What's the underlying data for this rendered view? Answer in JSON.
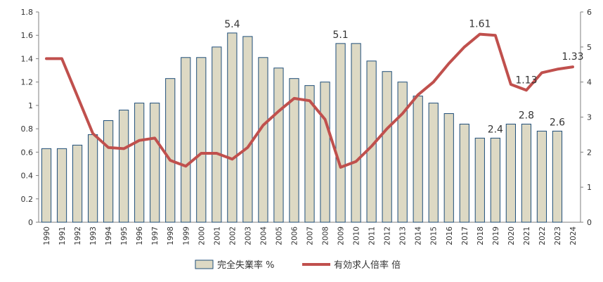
{
  "chart_data": {
    "type": "bar+line",
    "categories": [
      "1990",
      "1991",
      "1992",
      "1993",
      "1994",
      "1995",
      "1996",
      "1997",
      "1998",
      "1999",
      "2000",
      "2001",
      "2002",
      "2003",
      "2004",
      "2005",
      "2006",
      "2007",
      "2008",
      "2009",
      "2010",
      "2011",
      "2012",
      "2013",
      "2014",
      "2015",
      "2016",
      "2017",
      "2018",
      "2019",
      "2020",
      "2021",
      "2022",
      "2023",
      "2024"
    ],
    "series": [
      {
        "name": "完全失業率 %",
        "type": "bar",
        "axis": "right",
        "color": "#ddd9c4",
        "edge_color": "#1f4e79",
        "values": [
          2.1,
          2.1,
          2.2,
          2.5,
          2.9,
          3.2,
          3.4,
          3.4,
          4.1,
          4.7,
          4.7,
          5.0,
          5.4,
          5.3,
          4.7,
          4.4,
          4.1,
          3.9,
          4.0,
          5.1,
          5.1,
          4.6,
          4.3,
          4.0,
          3.6,
          3.4,
          3.1,
          2.8,
          2.4,
          2.4,
          2.8,
          2.8,
          2.6,
          2.6,
          null
        ]
      },
      {
        "name": "有効求人倍率 倍",
        "type": "line",
        "axis": "left",
        "color": "#c0504d",
        "values": [
          1.4,
          1.4,
          1.08,
          0.76,
          0.64,
          0.63,
          0.7,
          0.72,
          0.53,
          0.48,
          0.59,
          0.59,
          0.54,
          0.64,
          0.83,
          0.95,
          1.06,
          1.04,
          0.88,
          0.47,
          0.52,
          0.65,
          0.8,
          0.93,
          1.09,
          1.2,
          1.36,
          1.5,
          1.61,
          1.6,
          1.18,
          1.13,
          1.28,
          1.31,
          1.33
        ]
      }
    ],
    "y_left": {
      "ylim": [
        0,
        1.8
      ],
      "ticks": [
        "0",
        "0.2",
        "0.4",
        "0.6",
        "0.8",
        "1",
        "1.2",
        "1.4",
        "1.6",
        "1.8"
      ]
    },
    "y_right": {
      "ylim": [
        0,
        6
      ],
      "ticks": [
        "0",
        "1",
        "2",
        "3",
        "4",
        "5",
        "6"
      ]
    },
    "annotations": [
      {
        "text": "5.4",
        "series": 0,
        "index": 12
      },
      {
        "text": "5.1",
        "series": 0,
        "index": 19
      },
      {
        "text": "2.4",
        "series": 0,
        "index": 29
      },
      {
        "text": "2.8",
        "series": 0,
        "index": 31
      },
      {
        "text": "2.6",
        "series": 0,
        "index": 33
      },
      {
        "text": "1.61",
        "series": 1,
        "index": 28
      },
      {
        "text": "1.13",
        "series": 1,
        "index": 31
      },
      {
        "text": "1.33",
        "series": 1,
        "index": 34
      }
    ],
    "legend_position": "bottom-center",
    "grid": false
  }
}
